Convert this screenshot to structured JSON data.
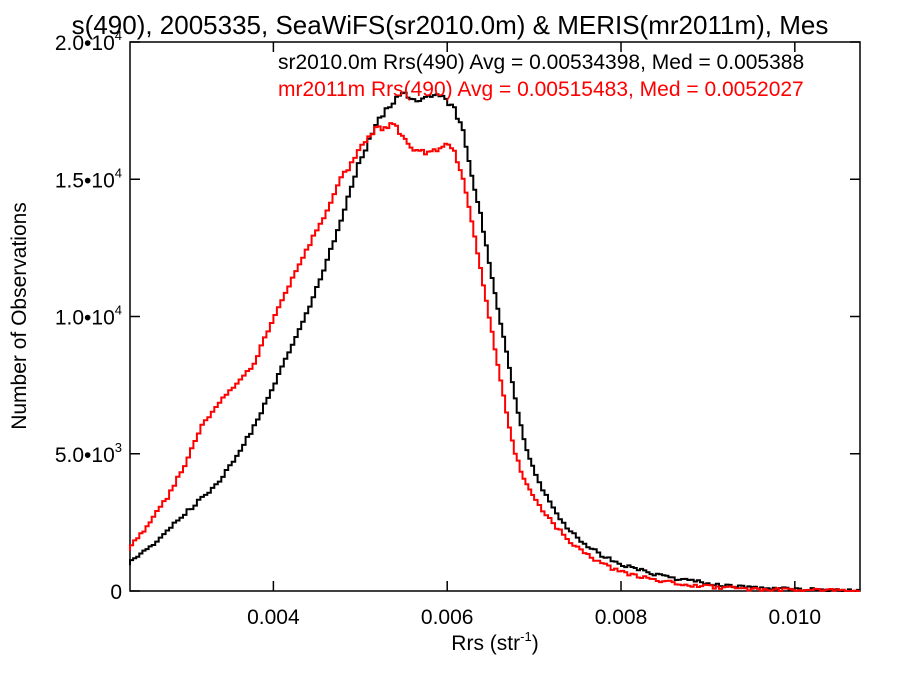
{
  "chart_data": {
    "type": "line",
    "title": "s(490), 2005335, SeaWiFS(sr2010.0m) & MERIS(mr2011m), Mes",
    "xlabel": "Rrs (str",
    "xlabel_exp": "-1",
    "xlabel_close": ")",
    "ylabel": "Number of Observations",
    "xlim": [
      0.00235,
      0.01075
    ],
    "ylim": [
      0,
      20000
    ],
    "x_ticks": [
      {
        "value": 0.004,
        "label": "0.004"
      },
      {
        "value": 0.006,
        "label": "0.006"
      },
      {
        "value": 0.008,
        "label": "0.008"
      },
      {
        "value": 0.01,
        "label": "0.010"
      }
    ],
    "y_ticks": [
      {
        "value": 0,
        "label": "0",
        "exp": ""
      },
      {
        "value": 5000,
        "label": "5.0•10",
        "exp": "3"
      },
      {
        "value": 10000,
        "label": "1.0•10",
        "exp": "4"
      },
      {
        "value": 15000,
        "label": "1.5•10",
        "exp": "4"
      },
      {
        "value": 20000,
        "label": "2.0•10",
        "exp": "4"
      }
    ],
    "legend": [
      {
        "text": "sr2010.0m Rrs(490) Avg = 0.00534398, Med = 0.005388",
        "color": "#000000"
      },
      {
        "text": "mr2011m Rrs(490) Avg = 0.00515483, Med = 0.0052027",
        "color": "#ff0000"
      }
    ],
    "legend_position": "top-right",
    "grid": false,
    "series": [
      {
        "color": "#000000",
        "points": [
          [
            0.00235,
            1000
          ],
          [
            0.0026,
            1600
          ],
          [
            0.0028,
            2200
          ],
          [
            0.003,
            2800
          ],
          [
            0.0032,
            3400
          ],
          [
            0.0034,
            4000
          ],
          [
            0.0036,
            4900
          ],
          [
            0.0038,
            6000
          ],
          [
            0.004,
            7300
          ],
          [
            0.0042,
            8700
          ],
          [
            0.0044,
            10100
          ],
          [
            0.0046,
            11700
          ],
          [
            0.0048,
            13500
          ],
          [
            0.005,
            15500
          ],
          [
            0.0052,
            17000
          ],
          [
            0.0054,
            17800
          ],
          [
            0.0055,
            18100
          ],
          [
            0.0056,
            18000
          ],
          [
            0.0057,
            17900
          ],
          [
            0.0058,
            18100
          ],
          [
            0.0059,
            18000
          ],
          [
            0.006,
            17900
          ],
          [
            0.0061,
            17600
          ],
          [
            0.0062,
            16700
          ],
          [
            0.0063,
            15200
          ],
          [
            0.0064,
            13700
          ],
          [
            0.0065,
            12000
          ],
          [
            0.0066,
            10300
          ],
          [
            0.0067,
            8700
          ],
          [
            0.0068,
            7000
          ],
          [
            0.0069,
            5500
          ],
          [
            0.007,
            4500
          ],
          [
            0.0072,
            3200
          ],
          [
            0.0074,
            2300
          ],
          [
            0.0076,
            1700
          ],
          [
            0.0078,
            1300
          ],
          [
            0.008,
            1000
          ],
          [
            0.0084,
            600
          ],
          [
            0.0088,
            380
          ],
          [
            0.0092,
            220
          ],
          [
            0.0096,
            140
          ],
          [
            0.01,
            80
          ],
          [
            0.0104,
            40
          ],
          [
            0.01075,
            20
          ]
        ]
      },
      {
        "color": "#ff0000",
        "points": [
          [
            0.00235,
            1500
          ],
          [
            0.0026,
            2500
          ],
          [
            0.0028,
            3400
          ],
          [
            0.003,
            4600
          ],
          [
            0.0032,
            6000
          ],
          [
            0.0034,
            6900
          ],
          [
            0.0036,
            7500
          ],
          [
            0.0038,
            8300
          ],
          [
            0.004,
            9800
          ],
          [
            0.0042,
            11100
          ],
          [
            0.0044,
            12400
          ],
          [
            0.0046,
            13600
          ],
          [
            0.0048,
            15000
          ],
          [
            0.005,
            16000
          ],
          [
            0.0052,
            16800
          ],
          [
            0.0053,
            16900
          ],
          [
            0.0054,
            17000
          ],
          [
            0.0055,
            16600
          ],
          [
            0.0056,
            16200
          ],
          [
            0.0057,
            16000
          ],
          [
            0.0058,
            16000
          ],
          [
            0.0059,
            16100
          ],
          [
            0.006,
            16300
          ],
          [
            0.0061,
            16000
          ],
          [
            0.0062,
            15000
          ],
          [
            0.0063,
            13500
          ],
          [
            0.0064,
            11700
          ],
          [
            0.0065,
            10000
          ],
          [
            0.0066,
            8200
          ],
          [
            0.0067,
            6500
          ],
          [
            0.0068,
            5000
          ],
          [
            0.0069,
            4100
          ],
          [
            0.007,
            3500
          ],
          [
            0.0072,
            2600
          ],
          [
            0.0074,
            1900
          ],
          [
            0.0076,
            1400
          ],
          [
            0.0078,
            1000
          ],
          [
            0.008,
            700
          ],
          [
            0.0084,
            400
          ],
          [
            0.0088,
            220
          ],
          [
            0.0092,
            120
          ],
          [
            0.0096,
            60
          ],
          [
            0.01,
            30
          ],
          [
            0.0104,
            15
          ],
          [
            0.01075,
            5
          ]
        ]
      }
    ]
  }
}
